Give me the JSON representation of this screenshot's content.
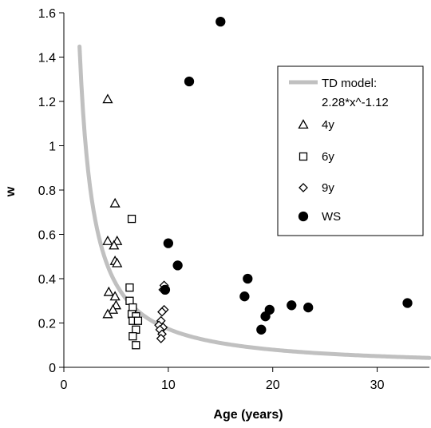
{
  "chart_data": {
    "type": "scatter",
    "title": "",
    "xlabel": "Age (years)",
    "ylabel": "w",
    "xlim": [
      0,
      35
    ],
    "ylim": [
      0,
      1.6
    ],
    "xticks": [
      0,
      10,
      20,
      30
    ],
    "yticks": [
      0,
      0.2,
      0.4,
      0.6,
      0.8,
      1,
      1.2,
      1.4,
      1.6
    ],
    "xtick_labels": [
      "0",
      "10",
      "20",
      "30"
    ],
    "ytick_labels": [
      "0",
      "0.2",
      "0.4",
      "0.6",
      "0.8",
      "1",
      "1.2",
      "1.4",
      "1.6"
    ],
    "grid": false,
    "legend_position": "top-right",
    "model": {
      "label_line1": "TD model:",
      "label_line2": "2.28*x^-1.12",
      "coefficient": 2.28,
      "exponent": -1.12,
      "x_start": 1.5,
      "x_end": 35,
      "color": "#c0c0c0"
    },
    "series": [
      {
        "name": "4y",
        "marker": "triangle",
        "points": [
          [
            4.2,
            1.21
          ],
          [
            4.9,
            0.74
          ],
          [
            4.2,
            0.57
          ],
          [
            5.1,
            0.57
          ],
          [
            4.8,
            0.55
          ],
          [
            4.9,
            0.48
          ],
          [
            5.1,
            0.47
          ],
          [
            4.3,
            0.34
          ],
          [
            4.9,
            0.32
          ],
          [
            5.0,
            0.28
          ],
          [
            4.7,
            0.26
          ],
          [
            4.2,
            0.24
          ]
        ]
      },
      {
        "name": "6y",
        "marker": "square",
        "points": [
          [
            6.5,
            0.67
          ],
          [
            6.3,
            0.36
          ],
          [
            6.3,
            0.3
          ],
          [
            6.6,
            0.27
          ],
          [
            6.5,
            0.24
          ],
          [
            6.9,
            0.23
          ],
          [
            6.6,
            0.21
          ],
          [
            7.1,
            0.21
          ],
          [
            6.9,
            0.17
          ],
          [
            6.6,
            0.14
          ],
          [
            6.9,
            0.1
          ]
        ]
      },
      {
        "name": "9y",
        "marker": "diamond",
        "points": [
          [
            9.6,
            0.37
          ],
          [
            9.5,
            0.35
          ],
          [
            9.6,
            0.26
          ],
          [
            9.4,
            0.25
          ],
          [
            9.3,
            0.21
          ],
          [
            9.1,
            0.19
          ],
          [
            9.5,
            0.18
          ],
          [
            9.2,
            0.17
          ],
          [
            9.4,
            0.15
          ],
          [
            9.3,
            0.13
          ]
        ]
      },
      {
        "name": "WS",
        "marker": "circle",
        "points": [
          [
            15.0,
            1.56
          ],
          [
            12.0,
            1.29
          ],
          [
            10.0,
            0.56
          ],
          [
            10.9,
            0.46
          ],
          [
            9.7,
            0.35
          ],
          [
            17.6,
            0.4
          ],
          [
            17.3,
            0.32
          ],
          [
            19.3,
            0.23
          ],
          [
            19.7,
            0.26
          ],
          [
            18.9,
            0.17
          ],
          [
            21.8,
            0.28
          ],
          [
            23.4,
            0.27
          ],
          [
            32.9,
            0.29
          ]
        ]
      }
    ]
  }
}
